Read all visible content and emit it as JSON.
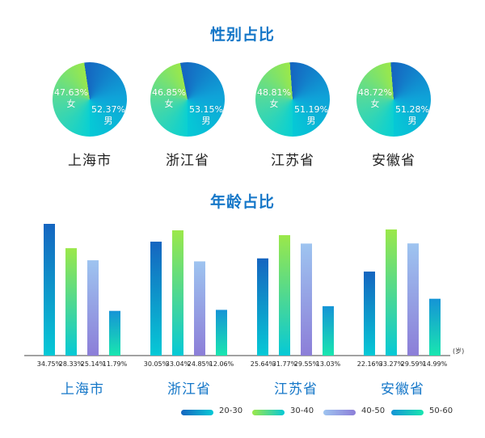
{
  "gender": {
    "title": "性别占比",
    "female_label": "女",
    "male_label": "男",
    "regions": [
      {
        "name": "上海市",
        "female": "47.63%",
        "male": "52.37%"
      },
      {
        "name": "浙江省",
        "female": "46.85%",
        "male": "53.15%"
      },
      {
        "name": "江苏省",
        "female": "48.81%",
        "male": "51.19%"
      },
      {
        "name": "安徽省",
        "female": "48.72%",
        "male": "51.28%"
      }
    ]
  },
  "age": {
    "title": "年龄占比",
    "unit": "(岁)"
  },
  "colors": {
    "title": "#1577c8",
    "s2030_top": "#1565c0",
    "s2030_bottom": "#06c9d6",
    "s3040_top": "#9be84a",
    "s3040_bottom": "#06c9d6",
    "s4050_top": "#9ec4f0",
    "s4050_bottom": "#8c7ed8",
    "s5060_top": "#1594d6",
    "s5060_bottom": "#19e6b0"
  },
  "chart_data": {
    "type": "bar",
    "title": "年龄占比",
    "categories": [
      "上海市",
      "浙江省",
      "江苏省",
      "安徽省"
    ],
    "series": [
      {
        "name": "20-30",
        "values": [
          34.75,
          30.05,
          25.64,
          22.16
        ],
        "labels": [
          "34.75%",
          "30.05%",
          "25.64%",
          "22.16%"
        ]
      },
      {
        "name": "30-40",
        "values": [
          28.33,
          33.04,
          31.77,
          33.27
        ],
        "labels": [
          "28.33%",
          "33.04%",
          "31.77%",
          "33.27%"
        ]
      },
      {
        "name": "40-50",
        "values": [
          25.14,
          24.85,
          29.55,
          29.59
        ],
        "labels": [
          "25.14%",
          "24.85%",
          "29.55%",
          "29.59%"
        ]
      },
      {
        "name": "50-60",
        "values": [
          11.79,
          12.06,
          13.03,
          14.99
        ],
        "labels": [
          "11.79%",
          "12.06%",
          "13.03%",
          "14.99%"
        ]
      }
    ],
    "xlabel": "",
    "ylabel": "",
    "unit": "(岁)",
    "ylim": [
      0,
      35
    ],
    "legend": "bottom-right"
  }
}
